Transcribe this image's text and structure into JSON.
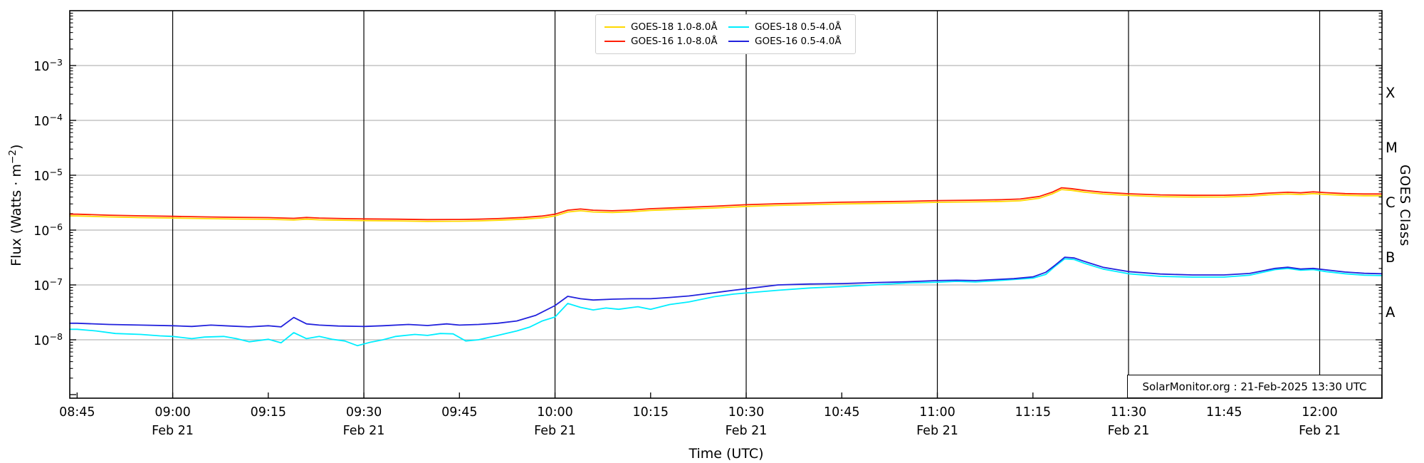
{
  "figure": {
    "kind": "GOES X-ray flux time plot",
    "background": "#ffffff"
  },
  "axes": {
    "y_label": {
      "prefix": "Flux (Watts · m",
      "exp": "−2",
      "suffix": ")"
    },
    "x_label": "Time (UTC)",
    "right_label": "GOES Class",
    "y_ticks": [
      {
        "base": "10",
        "exp": "−3",
        "exponent": -3
      },
      {
        "base": "10",
        "exp": "−4",
        "exponent": -4
      },
      {
        "base": "10",
        "exp": "−5",
        "exponent": -5
      },
      {
        "base": "10",
        "exp": "−6",
        "exponent": -6
      },
      {
        "base": "10",
        "exp": "−7",
        "exponent": -7
      },
      {
        "base": "10",
        "exp": "−8",
        "exponent": -8
      }
    ],
    "x_ticks": [
      {
        "label": "08:45",
        "minutes": 0,
        "date": ""
      },
      {
        "label": "09:00",
        "minutes": 15,
        "date": "Feb 21"
      },
      {
        "label": "09:15",
        "minutes": 30,
        "date": ""
      },
      {
        "label": "09:30",
        "minutes": 45,
        "date": "Feb 21"
      },
      {
        "label": "09:45",
        "minutes": 60,
        "date": ""
      },
      {
        "label": "10:00",
        "minutes": 75,
        "date": "Feb 21"
      },
      {
        "label": "10:15",
        "minutes": 90,
        "date": ""
      },
      {
        "label": "10:30",
        "minutes": 105,
        "date": "Feb 21"
      },
      {
        "label": "10:45",
        "minutes": 120,
        "date": ""
      },
      {
        "label": "11:00",
        "minutes": 135,
        "date": "Feb 21"
      },
      {
        "label": "11:15",
        "minutes": 150,
        "date": ""
      },
      {
        "label": "11:30",
        "minutes": 165,
        "date": "Feb 21"
      },
      {
        "label": "11:45",
        "minutes": 180,
        "date": ""
      },
      {
        "label": "12:00",
        "minutes": 195,
        "date": "Feb 21"
      }
    ],
    "goes_classes": [
      {
        "label": "X",
        "mid_exponent": -3.5
      },
      {
        "label": "M",
        "mid_exponent": -4.5
      },
      {
        "label": "C",
        "mid_exponent": -5.5
      },
      {
        "label": "B",
        "mid_exponent": -6.5
      },
      {
        "label": "A",
        "mid_exponent": -7.5
      }
    ]
  },
  "legend": {
    "entries": [
      {
        "label": "GOES-18 1.0-8.0Å",
        "color": "#FFD900"
      },
      {
        "label": "GOES-18 0.5-4.0Å",
        "color": "#00EEFF"
      },
      {
        "label": "GOES-16 1.0-8.0Å",
        "color": "#FF1E00"
      },
      {
        "label": "GOES-16 0.5-4.0Å",
        "color": "#2222DD"
      }
    ]
  },
  "annotation": {
    "text": "SolarMonitor.org : 21-Feb-2025 13:30 UTC"
  },
  "colors": {
    "grid_h": "#b8b8b8",
    "grid_v": "#000000",
    "spine": "#000000"
  },
  "chart_data": {
    "type": "line",
    "title": "",
    "xlabel": "Time (UTC)",
    "ylabel": "Flux (Watts · m^-2)",
    "x_unit": "minutes since 08:45 UTC 21-Feb-2025",
    "x_range_labels": [
      "08:45",
      "12:10"
    ],
    "ylim": [
      1e-09,
      0.01
    ],
    "y_scale": "log",
    "grid": "decade horizontal gray, half-hour vertical black",
    "legend_position": "top center",
    "series": [
      {
        "name": "GOES-18 1.0-8.0Å",
        "color": "#FFD900",
        "x": [
          0,
          5,
          10,
          15,
          20,
          25,
          30,
          34,
          36,
          38,
          42,
          45,
          50,
          55,
          60,
          63,
          66,
          70,
          73,
          75,
          77,
          79,
          81,
          84,
          87,
          90,
          95,
          100,
          105,
          110,
          115,
          120,
          125,
          130,
          135,
          140,
          145,
          148,
          151,
          153,
          154.5,
          156,
          158,
          161,
          165,
          170,
          175,
          180,
          184,
          187,
          190,
          192,
          194,
          196,
          199,
          202,
          205
        ],
        "y": [
          1.81e-06,
          1.74e-06,
          1.69e-06,
          1.66e-06,
          1.62e-06,
          1.59e-06,
          1.57e-06,
          1.53e-06,
          1.58e-06,
          1.54e-06,
          1.51e-06,
          1.49e-06,
          1.47e-06,
          1.44e-06,
          1.45e-06,
          1.47e-06,
          1.51e-06,
          1.58e-06,
          1.67e-06,
          1.81e-06,
          2.14e-06,
          2.25e-06,
          2.14e-06,
          2.09e-06,
          2.16e-06,
          2.28e-06,
          2.4e-06,
          2.53e-06,
          2.7e-06,
          2.81e-06,
          2.9e-06,
          3e-06,
          3.05e-06,
          3.12e-06,
          3.21e-06,
          3.26e-06,
          3.33e-06,
          3.42e-06,
          3.81e-06,
          4.56e-06,
          5.49e-06,
          5.3e-06,
          4.93e-06,
          4.56e-06,
          4.28e-06,
          4.07e-06,
          4e-06,
          4.02e-06,
          4.14e-06,
          4.39e-06,
          4.56e-06,
          4.45e-06,
          4.63e-06,
          4.46e-06,
          4.3e-06,
          4.23e-06,
          4.23e-06
        ]
      },
      {
        "name": "GOES-16 1.0-8.0Å",
        "color": "#FF1E00",
        "x": [
          0,
          5,
          10,
          15,
          20,
          25,
          30,
          34,
          36,
          38,
          42,
          45,
          50,
          55,
          60,
          63,
          66,
          70,
          73,
          75,
          77,
          79,
          81,
          84,
          87,
          90,
          95,
          100,
          105,
          110,
          115,
          120,
          125,
          130,
          135,
          140,
          145,
          148,
          151,
          153,
          154.5,
          156,
          158,
          161,
          165,
          170,
          175,
          180,
          184,
          187,
          190,
          192,
          194,
          196,
          199,
          202,
          205
        ],
        "y": [
          1.95e-06,
          1.87e-06,
          1.82e-06,
          1.78e-06,
          1.74e-06,
          1.71e-06,
          1.69e-06,
          1.64e-06,
          1.7e-06,
          1.66e-06,
          1.62e-06,
          1.6e-06,
          1.58e-06,
          1.55e-06,
          1.56e-06,
          1.58e-06,
          1.62e-06,
          1.7e-06,
          1.8e-06,
          1.95e-06,
          2.3e-06,
          2.42e-06,
          2.3e-06,
          2.25e-06,
          2.32e-06,
          2.45e-06,
          2.58e-06,
          2.72e-06,
          2.9e-06,
          3.02e-06,
          3.12e-06,
          3.22e-06,
          3.28e-06,
          3.35e-06,
          3.45e-06,
          3.5e-06,
          3.58e-06,
          3.68e-06,
          4.1e-06,
          4.9e-06,
          5.9e-06,
          5.7e-06,
          5.3e-06,
          4.9e-06,
          4.6e-06,
          4.38e-06,
          4.3e-06,
          4.32e-06,
          4.45e-06,
          4.72e-06,
          4.9e-06,
          4.78e-06,
          4.98e-06,
          4.8e-06,
          4.62e-06,
          4.55e-06,
          4.55e-06
        ]
      },
      {
        "name": "GOES-18 0.5-4.0Å",
        "color": "#00EEFF",
        "x": [
          0,
          3,
          6,
          10,
          13,
          15,
          18,
          20,
          23,
          25,
          27,
          30,
          32,
          34,
          36,
          38,
          40,
          42,
          44,
          46,
          48,
          50,
          53,
          55,
          57,
          59,
          61,
          63,
          66,
          69,
          71,
          73,
          75,
          77,
          79,
          81,
          83,
          85,
          88,
          90,
          93,
          96,
          100,
          103,
          106,
          110,
          115,
          120,
          125,
          130,
          135,
          138,
          141,
          144,
          147,
          150,
          152,
          153.5,
          155,
          156.5,
          158,
          161,
          165,
          170,
          175,
          180,
          184,
          188,
          190,
          192,
          194,
          196,
          199,
          202,
          205
        ],
        "y": [
          1.55e-08,
          1.45e-08,
          1.3e-08,
          1.25e-08,
          1.18e-08,
          1.15e-08,
          1.05e-08,
          1.12e-08,
          1.15e-08,
          1.05e-08,
          9.2e-09,
          1.02e-08,
          8.8e-09,
          1.35e-08,
          1.05e-08,
          1.15e-08,
          1.02e-08,
          9.5e-09,
          7.8e-09,
          9e-09,
          1e-08,
          1.15e-08,
          1.25e-08,
          1.2e-08,
          1.3e-08,
          1.28e-08,
          9.5e-09,
          1e-08,
          1.2e-08,
          1.45e-08,
          1.7e-08,
          2.2e-08,
          2.6e-08,
          4.6e-08,
          3.9e-08,
          3.5e-08,
          3.8e-08,
          3.6e-08,
          4e-08,
          3.6e-08,
          4.4e-08,
          4.9e-08,
          6.1e-08,
          6.8e-08,
          7.3e-08,
          8e-08,
          8.8e-08,
          9.3e-08,
          1e-07,
          1.08e-07,
          1.12e-07,
          1.16e-07,
          1.13e-07,
          1.19e-07,
          1.26e-07,
          1.33e-07,
          1.55e-07,
          2.2e-07,
          3e-07,
          2.9e-07,
          2.5e-07,
          1.95e-07,
          1.6e-07,
          1.43e-07,
          1.39e-07,
          1.39e-07,
          1.5e-07,
          1.9e-07,
          2e-07,
          1.85e-07,
          1.9e-07,
          1.75e-07,
          1.6e-07,
          1.5e-07,
          1.48e-07
        ]
      },
      {
        "name": "GOES-16 0.5-4.0Å",
        "color": "#2222DD",
        "x": [
          0,
          5,
          10,
          15,
          18,
          21,
          24,
          27,
          30,
          32,
          34,
          36,
          38,
          41,
          45,
          48,
          52,
          55,
          58,
          60,
          63,
          66,
          69,
          72,
          75,
          77,
          79,
          81,
          84,
          87,
          90,
          93,
          96,
          100,
          103,
          106,
          110,
          115,
          120,
          125,
          130,
          135,
          138,
          141,
          144,
          147,
          150,
          152,
          153.5,
          155,
          156.5,
          158,
          161,
          165,
          170,
          175,
          180,
          184,
          188,
          190,
          192,
          194,
          196,
          199,
          202,
          205
        ],
        "y": [
          2e-08,
          1.9e-08,
          1.85e-08,
          1.8e-08,
          1.75e-08,
          1.85e-08,
          1.78e-08,
          1.72e-08,
          1.8e-08,
          1.72e-08,
          2.55e-08,
          1.95e-08,
          1.85e-08,
          1.78e-08,
          1.75e-08,
          1.8e-08,
          1.9e-08,
          1.82e-08,
          1.95e-08,
          1.85e-08,
          1.9e-08,
          2e-08,
          2.2e-08,
          2.8e-08,
          4.2e-08,
          6.2e-08,
          5.6e-08,
          5.3e-08,
          5.5e-08,
          5.6e-08,
          5.6e-08,
          5.9e-08,
          6.3e-08,
          7.2e-08,
          8e-08,
          8.8e-08,
          1e-07,
          1.04e-07,
          1.06e-07,
          1.1e-07,
          1.14e-07,
          1.2e-07,
          1.22e-07,
          1.2e-07,
          1.25e-07,
          1.3e-07,
          1.4e-07,
          1.7e-07,
          2.3e-07,
          3.2e-07,
          3.1e-07,
          2.7e-07,
          2.1e-07,
          1.75e-07,
          1.58e-07,
          1.52e-07,
          1.52e-07,
          1.62e-07,
          2e-07,
          2.1e-07,
          1.95e-07,
          2e-07,
          1.88e-07,
          1.72e-07,
          1.63e-07,
          1.6e-07
        ]
      }
    ]
  }
}
